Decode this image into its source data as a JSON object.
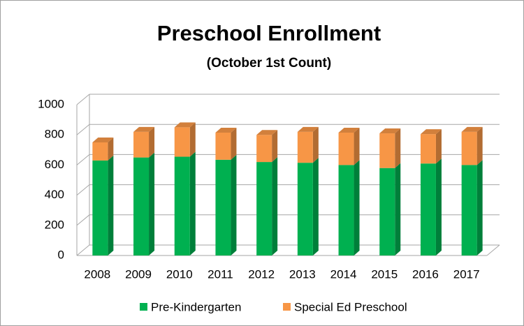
{
  "chart_data": {
    "type": "bar",
    "stacked": true,
    "title": "Preschool Enrollment",
    "subtitle": "(October 1st Count)",
    "categories": [
      "2008",
      "2009",
      "2010",
      "2011",
      "2012",
      "2013",
      "2014",
      "2015",
      "2016",
      "2017"
    ],
    "series": [
      {
        "name": "Pre-Kindergarten",
        "color": "#00b050",
        "values": [
          630,
          650,
          655,
          635,
          620,
          615,
          600,
          580,
          610,
          600
        ]
      },
      {
        "name": "Special Ed Preschool",
        "color": "#f79646",
        "values": [
          120,
          170,
          195,
          180,
          180,
          205,
          215,
          230,
          195,
          220
        ]
      }
    ],
    "ylim": [
      0,
      1000
    ],
    "yticks": [
      0,
      200,
      400,
      600,
      800,
      1000
    ],
    "grid": true,
    "legend": "bottom"
  }
}
